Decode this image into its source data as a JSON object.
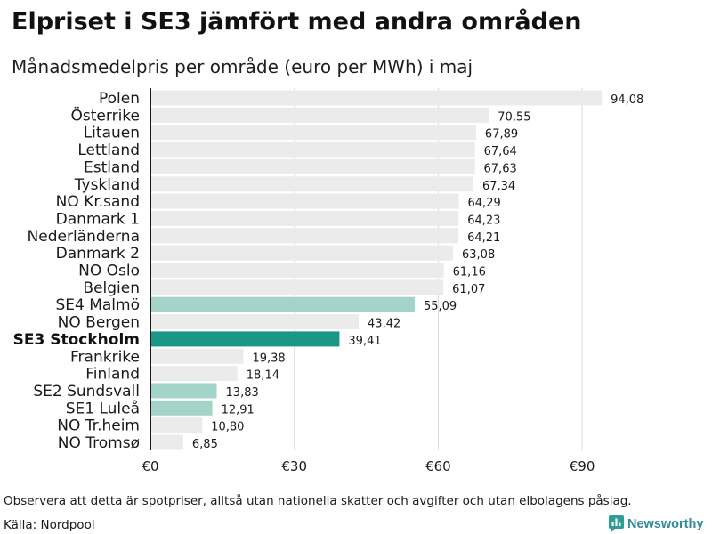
{
  "chart_data": {
    "type": "bar",
    "horizontal": true,
    "title": "Elpriset i SE3 jämfört med andra områden",
    "subtitle": "Månadsmedelpris per område (euro per MWh) i maj",
    "xlabel": "",
    "ylabel": "",
    "categories": [
      "Polen",
      "Österrike",
      "Litauen",
      "Lettland",
      "Estland",
      "Tyskland",
      "NO Kr.sand",
      "Danmark 1",
      "Nederländerna",
      "Danmark 2",
      "NO Oslo",
      "Belgien",
      "SE4 Malmö",
      "NO Bergen",
      "SE3 Stockholm",
      "Frankrike",
      "Finland",
      "SE2 Sundsvall",
      "SE1 Luleå",
      "NO Tr.heim",
      "NO Tromsø"
    ],
    "values": [
      94.08,
      70.55,
      67.89,
      67.64,
      67.63,
      67.34,
      64.29,
      64.23,
      64.21,
      63.08,
      61.16,
      61.07,
      55.09,
      43.42,
      39.41,
      19.38,
      18.14,
      13.83,
      12.91,
      10.8,
      6.85
    ],
    "value_labels": [
      "94,08",
      "70,55",
      "67,89",
      "67,64",
      "67,63",
      "67,34",
      "64,29",
      "64,23",
      "64,21",
      "63,08",
      "61,16",
      "61,07",
      "55,09",
      "43,42",
      "39,41",
      "19,38",
      "18,14",
      "13,83",
      "12,91",
      "10,80",
      "6,85"
    ],
    "bar_colors": [
      "#ebebeb",
      "#ebebeb",
      "#ebebeb",
      "#ebebeb",
      "#ebebeb",
      "#ebebeb",
      "#ebebeb",
      "#ebebeb",
      "#ebebeb",
      "#ebebeb",
      "#ebebeb",
      "#ebebeb",
      "#a4d3c8",
      "#ebebeb",
      "#1a9686",
      "#ebebeb",
      "#ebebeb",
      "#a4d3c8",
      "#a4d3c8",
      "#ebebeb",
      "#ebebeb"
    ],
    "highlight_index": 14,
    "xlim": [
      0,
      100
    ],
    "x_ticks": [
      0,
      30,
      60,
      90
    ],
    "x_tick_labels": [
      "€0",
      "€30",
      "€60",
      "€90"
    ],
    "grid": true
  },
  "footer": {
    "note": "Observera att detta är spotpriser, alltså utan nationella skatter och avgifter och utan elbolagens påslag.",
    "source": "Källa: Nordpool"
  },
  "logo": {
    "text": "Newsworthy",
    "icon": "newsworthy-logo-icon"
  }
}
